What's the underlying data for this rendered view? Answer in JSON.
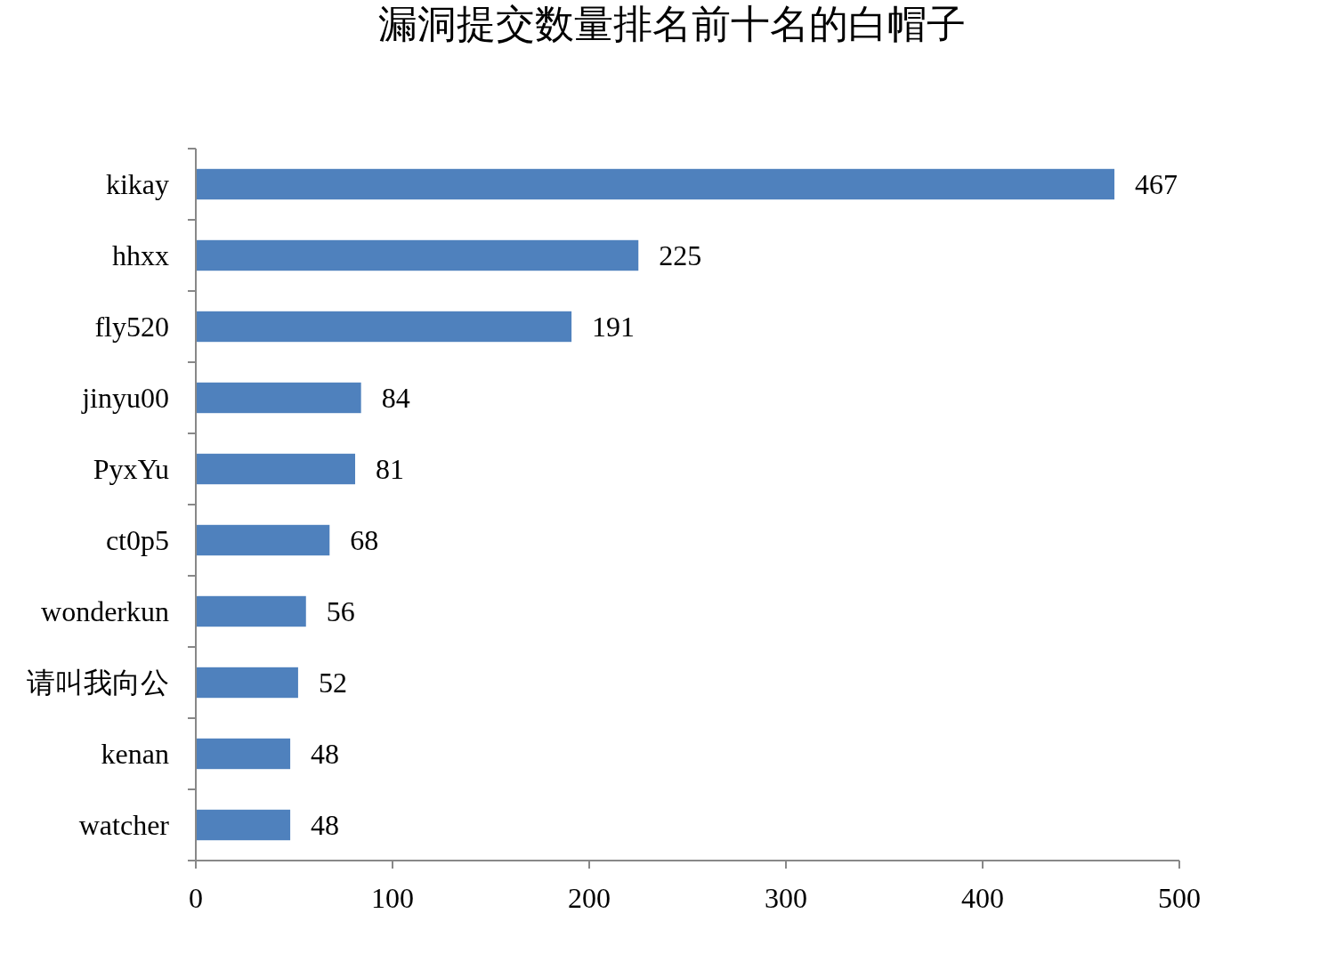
{
  "chart_data": {
    "type": "bar",
    "orientation": "horizontal",
    "title": "漏洞提交数量排名前十名的白帽子",
    "categories": [
      "kikay",
      "hhxx",
      "fly520",
      "jinyu00",
      "PyxYu",
      "ct0p5",
      "wonderkun",
      "请叫我向公",
      "kenan",
      "watcher"
    ],
    "values": [
      467,
      225,
      191,
      84,
      81,
      68,
      56,
      52,
      48,
      48
    ],
    "color": "#4f81bd",
    "xlim": [
      0,
      500
    ],
    "xticks": [
      0,
      100,
      200,
      300,
      400,
      500
    ],
    "data_labels": true
  }
}
